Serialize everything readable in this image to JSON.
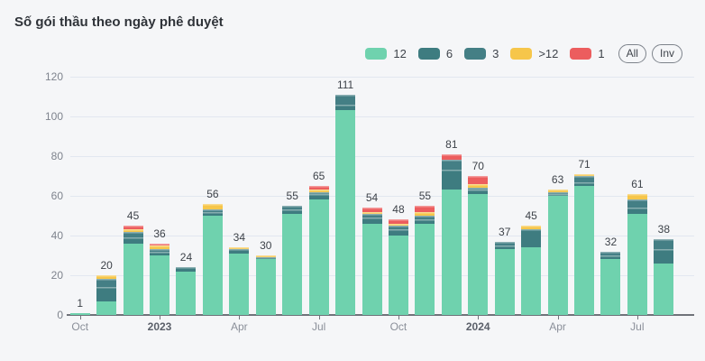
{
  "title": "Số gói thầu theo ngày phê duyệt",
  "legend": {
    "items": [
      {
        "label": "12",
        "color": "#6fd2ae"
      },
      {
        "label": "6",
        "color": "#3e7c80"
      },
      {
        "label": "3",
        "color": "#447f85"
      },
      {
        "label": ">12",
        "color": "#f6c64a"
      },
      {
        "label": "1",
        "color": "#ec5d5e"
      }
    ],
    "buttons": [
      {
        "label": "All"
      },
      {
        "label": "Inv"
      }
    ]
  },
  "chart_data": {
    "type": "bar",
    "stacked": true,
    "title": "Số gói thầu theo ngày phê duyệt",
    "ylim": [
      0,
      120
    ],
    "yticks": [
      0,
      20,
      40,
      60,
      80,
      100,
      120
    ],
    "grid": true,
    "legend_position": "top-right",
    "bar_count": 23,
    "bar_totals": [
      1,
      20,
      45,
      36,
      24,
      56,
      34,
      30,
      55,
      65,
      111,
      54,
      48,
      55,
      81,
      70,
      37,
      45,
      63,
      71,
      32,
      61,
      38
    ],
    "x_ticks": [
      {
        "bar_index": 0,
        "label": "Oct",
        "bold": false
      },
      {
        "bar_index": 3,
        "label": "2023",
        "bold": true
      },
      {
        "bar_index": 6,
        "label": "Apr",
        "bold": false
      },
      {
        "bar_index": 9,
        "label": "Jul",
        "bold": false
      },
      {
        "bar_index": 12,
        "label": "Oct",
        "bold": false
      },
      {
        "bar_index": 15,
        "label": "2024",
        "bold": true
      },
      {
        "bar_index": 18,
        "label": "Apr",
        "bold": false
      },
      {
        "bar_index": 21,
        "label": "Jul",
        "bold": false
      }
    ],
    "series": [
      {
        "name": "12",
        "color": "#6fd2ae",
        "values": [
          1,
          7,
          36,
          30,
          22,
          50,
          31,
          28,
          51,
          58,
          103,
          46,
          40,
          46,
          63,
          61,
          33,
          34,
          60,
          65,
          28,
          51,
          26
        ]
      },
      {
        "name": "6",
        "color": "#3e7c80",
        "values": [
          0,
          7,
          3,
          2,
          2,
          2,
          2,
          1,
          2,
          3,
          3,
          3,
          3,
          2,
          10,
          2,
          2,
          9,
          1,
          2,
          2,
          3,
          7
        ]
      },
      {
        "name": "3",
        "color": "#447f85",
        "values": [
          0,
          4,
          3,
          1,
          0,
          1,
          0,
          0,
          2,
          1,
          5,
          2,
          2,
          2,
          5,
          1,
          2,
          0,
          1,
          3,
          2,
          4,
          5
        ]
      },
      {
        "name": ">12",
        "color": "#f6c64a",
        "values": [
          0,
          2,
          1,
          2,
          0,
          3,
          1,
          1,
          0,
          1,
          0,
          1,
          1,
          2,
          0,
          2,
          0,
          2,
          1,
          1,
          0,
          3,
          0
        ]
      },
      {
        "name": "1",
        "color": "#ec5d5e",
        "values": [
          0,
          0,
          2,
          1,
          0,
          0,
          0,
          0,
          0,
          2,
          0,
          2,
          2,
          3,
          3,
          4,
          0,
          0,
          0,
          0,
          0,
          0,
          0
        ]
      }
    ],
    "colors": {
      "background": "#f5f6f8",
      "gridline": "#e2e7f0",
      "axis_line": "#6f737a",
      "axis_label": "#8a8f99",
      "value_label": "#3d4249"
    }
  }
}
